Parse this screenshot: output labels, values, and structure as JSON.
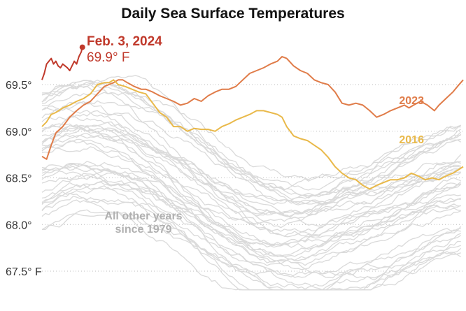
{
  "chart_data": {
    "type": "line",
    "title": "Daily Sea Surface Temperatures",
    "xlabel": "",
    "ylabel": "",
    "unit": "° F",
    "ylim": [
      67.4,
      70.5
    ],
    "x_days": [
      0,
      365
    ],
    "ticks": [
      {
        "value": 69.5,
        "label": "69.5°"
      },
      {
        "value": 69.0,
        "label": "69.0°"
      },
      {
        "value": 68.5,
        "label": "68.5°"
      },
      {
        "value": 68.0,
        "label": "68.0°"
      },
      {
        "value": 67.5,
        "label": "67.5° F"
      }
    ],
    "series": [
      {
        "name": "2023",
        "color": "#e07c49",
        "points": [
          [
            0,
            68.73
          ],
          [
            4,
            68.7
          ],
          [
            8,
            68.85
          ],
          [
            12,
            68.98
          ],
          [
            18,
            69.05
          ],
          [
            24,
            69.15
          ],
          [
            30,
            69.22
          ],
          [
            36,
            69.28
          ],
          [
            42,
            69.32
          ],
          [
            48,
            69.4
          ],
          [
            54,
            69.48
          ],
          [
            58,
            69.5
          ],
          [
            62,
            69.52
          ],
          [
            66,
            69.55
          ],
          [
            70,
            69.55
          ],
          [
            74,
            69.52
          ],
          [
            80,
            69.48
          ],
          [
            86,
            69.45
          ],
          [
            90,
            69.45
          ],
          [
            96,
            69.42
          ],
          [
            102,
            69.38
          ],
          [
            108,
            69.35
          ],
          [
            114,
            69.32
          ],
          [
            120,
            69.28
          ],
          [
            126,
            69.3
          ],
          [
            132,
            69.35
          ],
          [
            138,
            69.32
          ],
          [
            144,
            69.38
          ],
          [
            150,
            69.42
          ],
          [
            156,
            69.45
          ],
          [
            162,
            69.45
          ],
          [
            168,
            69.48
          ],
          [
            174,
            69.55
          ],
          [
            180,
            69.62
          ],
          [
            186,
            69.65
          ],
          [
            192,
            69.68
          ],
          [
            198,
            69.72
          ],
          [
            204,
            69.75
          ],
          [
            208,
            69.8
          ],
          [
            212,
            69.78
          ],
          [
            218,
            69.7
          ],
          [
            224,
            69.65
          ],
          [
            230,
            69.62
          ],
          [
            236,
            69.55
          ],
          [
            242,
            69.52
          ],
          [
            248,
            69.5
          ],
          [
            254,
            69.42
          ],
          [
            260,
            69.3
          ],
          [
            266,
            69.28
          ],
          [
            272,
            69.3
          ],
          [
            278,
            69.28
          ],
          [
            284,
            69.22
          ],
          [
            290,
            69.15
          ],
          [
            296,
            69.18
          ],
          [
            302,
            69.22
          ],
          [
            308,
            69.25
          ],
          [
            314,
            69.28
          ],
          [
            318,
            69.25
          ],
          [
            322,
            69.28
          ],
          [
            328,
            69.32
          ],
          [
            334,
            69.28
          ],
          [
            340,
            69.22
          ],
          [
            344,
            69.28
          ],
          [
            350,
            69.35
          ],
          [
            356,
            69.42
          ],
          [
            360,
            69.48
          ],
          [
            365,
            69.55
          ]
        ],
        "label_day": 170,
        "label_value": 69.29
      },
      {
        "name": "2016",
        "color": "#e9b94a",
        "points": [
          [
            0,
            69.05
          ],
          [
            4,
            69.1
          ],
          [
            8,
            69.18
          ],
          [
            12,
            69.2
          ],
          [
            18,
            69.25
          ],
          [
            24,
            69.28
          ],
          [
            30,
            69.32
          ],
          [
            36,
            69.35
          ],
          [
            42,
            69.4
          ],
          [
            48,
            69.5
          ],
          [
            54,
            69.52
          ],
          [
            58,
            69.52
          ],
          [
            62,
            69.55
          ],
          [
            66,
            69.5
          ],
          [
            72,
            69.48
          ],
          [
            78,
            69.45
          ],
          [
            84,
            69.42
          ],
          [
            90,
            69.4
          ],
          [
            96,
            69.3
          ],
          [
            102,
            69.2
          ],
          [
            108,
            69.15
          ],
          [
            114,
            69.05
          ],
          [
            120,
            69.05
          ],
          [
            126,
            69.0
          ],
          [
            132,
            69.03
          ],
          [
            138,
            69.02
          ],
          [
            144,
            69.02
          ],
          [
            150,
            69.0
          ],
          [
            156,
            69.05
          ],
          [
            162,
            69.08
          ],
          [
            168,
            69.12
          ],
          [
            174,
            69.15
          ],
          [
            180,
            69.18
          ],
          [
            186,
            69.22
          ],
          [
            192,
            69.22
          ],
          [
            198,
            69.2
          ],
          [
            204,
            69.18
          ],
          [
            208,
            69.15
          ],
          [
            212,
            69.05
          ],
          [
            218,
            68.95
          ],
          [
            224,
            68.92
          ],
          [
            230,
            68.9
          ],
          [
            236,
            68.85
          ],
          [
            242,
            68.8
          ],
          [
            248,
            68.72
          ],
          [
            254,
            68.62
          ],
          [
            260,
            68.55
          ],
          [
            266,
            68.5
          ],
          [
            272,
            68.48
          ],
          [
            278,
            68.42
          ],
          [
            284,
            68.38
          ],
          [
            290,
            68.42
          ],
          [
            296,
            68.45
          ],
          [
            302,
            68.48
          ],
          [
            308,
            68.48
          ],
          [
            314,
            68.5
          ],
          [
            320,
            68.55
          ],
          [
            326,
            68.52
          ],
          [
            332,
            68.48
          ],
          [
            338,
            68.5
          ],
          [
            344,
            68.48
          ],
          [
            350,
            68.52
          ],
          [
            356,
            68.55
          ],
          [
            360,
            68.58
          ],
          [
            365,
            68.62
          ]
        ],
        "label_day": 170,
        "label_value": 68.87
      },
      {
        "name": "2024",
        "color": "#c0392b",
        "points": [
          [
            0,
            69.55
          ],
          [
            2,
            69.62
          ],
          [
            4,
            69.72
          ],
          [
            6,
            69.75
          ],
          [
            8,
            69.78
          ],
          [
            10,
            69.72
          ],
          [
            12,
            69.75
          ],
          [
            14,
            69.7
          ],
          [
            16,
            69.68
          ],
          [
            18,
            69.72
          ],
          [
            20,
            69.7
          ],
          [
            22,
            69.68
          ],
          [
            24,
            69.65
          ],
          [
            26,
            69.7
          ],
          [
            28,
            69.75
          ],
          [
            30,
            69.72
          ],
          [
            32,
            69.8
          ],
          [
            34,
            69.85
          ],
          [
            35,
            69.9
          ]
        ]
      }
    ],
    "annotation": {
      "date": "Feb. 3, 2024",
      "value": "69.9° F"
    },
    "background_label": {
      "line1": "All other years",
      "line2": "since 1979"
    }
  }
}
